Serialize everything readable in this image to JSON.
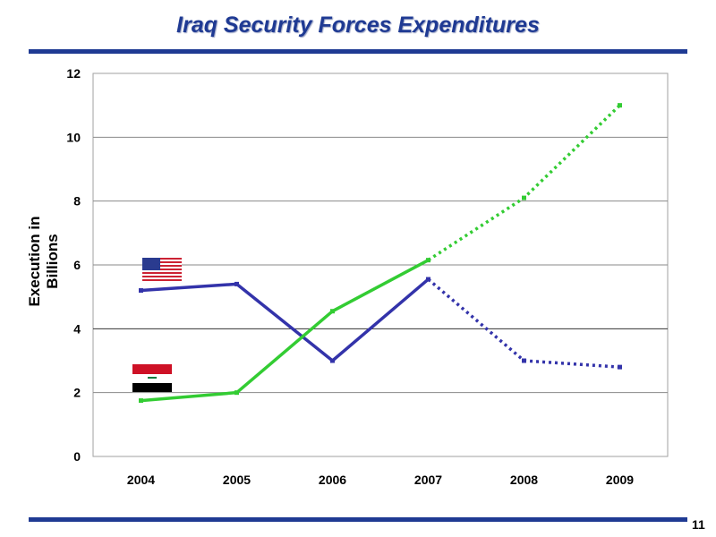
{
  "page_number": "11",
  "chart_data": {
    "type": "line",
    "title": "Iraq Security Forces Expenditures",
    "xlabel": "",
    "ylabel": "Execution in Billions",
    "categories": [
      "2004",
      "2005",
      "2006",
      "2007",
      "2008",
      "2009"
    ],
    "ylim": [
      0,
      12
    ],
    "yticks": [
      0,
      2,
      4,
      6,
      8,
      10,
      12
    ],
    "grid": true,
    "series": [
      {
        "marker": "us-flag-icon",
        "color": "#3333AA",
        "values": [
          5.2,
          5.4,
          3.0,
          5.55,
          3.0,
          2.8
        ],
        "actual_through": "2007",
        "projected_from": "2007"
      },
      {
        "marker": "iraq-flag-icon",
        "color": "#33CC33",
        "values": [
          1.75,
          2.0,
          4.55,
          6.15,
          8.1,
          11.0
        ],
        "actual_through": "2007",
        "projected_from": "2007"
      }
    ]
  },
  "colors": {
    "title": "#1F3A93",
    "rules": "#1F3A93",
    "us_series": "#3333AA",
    "iraq_series": "#33CC33"
  }
}
